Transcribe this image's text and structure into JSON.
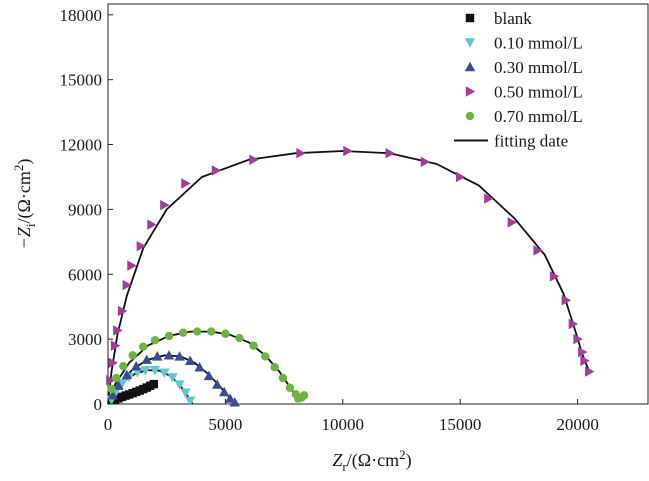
{
  "chart_data": {
    "type": "scatter",
    "title": "",
    "xlabel": {
      "var": "Z",
      "sub": "r",
      "rest": "/(Ω·cm",
      "sup": "2",
      "close": ")"
    },
    "ylabel": {
      "var": "−Z",
      "sub": "i",
      "rest": "/(Ω·cm",
      "sup": "2",
      "close": ")"
    },
    "xlim": [
      0,
      23000
    ],
    "ylim": [
      0,
      18500
    ],
    "xticks": [
      0,
      5000,
      10000,
      15000,
      20000
    ],
    "yticks": [
      0,
      3000,
      6000,
      9000,
      12000,
      15000,
      18000
    ],
    "grid": false,
    "legend_position": "top-right",
    "series": [
      {
        "name": "blank",
        "marker": "square",
        "color": "#111111",
        "points": [
          [
            300,
            200
          ],
          [
            450,
            260
          ],
          [
            600,
            330
          ],
          [
            750,
            390
          ],
          [
            900,
            440
          ],
          [
            1050,
            500
          ],
          [
            1200,
            560
          ],
          [
            1350,
            620
          ],
          [
            1500,
            690
          ],
          [
            1650,
            760
          ],
          [
            1800,
            840
          ],
          [
            1950,
            920
          ]
        ],
        "fit": [
          [
            150,
            100
          ],
          [
            400,
            230
          ],
          [
            700,
            370
          ],
          [
            1000,
            480
          ],
          [
            1300,
            600
          ],
          [
            1600,
            740
          ],
          [
            1900,
            890
          ],
          [
            2050,
            960
          ]
        ]
      },
      {
        "name": "0.10 mmol/L",
        "marker": "triangle-down",
        "color": "#5fc8cf",
        "points": [
          [
            150,
            200
          ],
          [
            350,
            600
          ],
          [
            600,
            950
          ],
          [
            900,
            1250
          ],
          [
            1250,
            1470
          ],
          [
            1600,
            1560
          ],
          [
            2000,
            1570
          ],
          [
            2400,
            1450
          ],
          [
            2750,
            1230
          ],
          [
            3050,
            900
          ],
          [
            3300,
            520
          ],
          [
            3500,
            150
          ]
        ],
        "fit": [
          [
            50,
            0
          ],
          [
            200,
            350
          ],
          [
            450,
            750
          ],
          [
            800,
            1150
          ],
          [
            1200,
            1430
          ],
          [
            1700,
            1570
          ],
          [
            2200,
            1540
          ],
          [
            2650,
            1300
          ],
          [
            3000,
            950
          ],
          [
            3300,
            520
          ],
          [
            3550,
            100
          ],
          [
            3600,
            0
          ]
        ]
      },
      {
        "name": "0.30 mmol/L",
        "marker": "triangle-up",
        "color": "#3a4c8f",
        "points": [
          [
            200,
            400
          ],
          [
            450,
            850
          ],
          [
            800,
            1350
          ],
          [
            1200,
            1750
          ],
          [
            1650,
            2050
          ],
          [
            2100,
            2200
          ],
          [
            2600,
            2250
          ],
          [
            3050,
            2200
          ],
          [
            3500,
            2000
          ],
          [
            3900,
            1700
          ],
          [
            4300,
            1300
          ],
          [
            4650,
            900
          ],
          [
            4950,
            550
          ],
          [
            5200,
            250
          ],
          [
            5400,
            80
          ]
        ],
        "fit": [
          [
            50,
            0
          ],
          [
            250,
            500
          ],
          [
            600,
            1100
          ],
          [
            1100,
            1650
          ],
          [
            1700,
            2050
          ],
          [
            2400,
            2250
          ],
          [
            3100,
            2200
          ],
          [
            3700,
            1900
          ],
          [
            4250,
            1400
          ],
          [
            4700,
            900
          ],
          [
            5100,
            400
          ],
          [
            5450,
            0
          ]
        ]
      },
      {
        "name": "0.50 mmol/L",
        "marker": "triangle-right",
        "color": "#a23d9a",
        "points": [
          [
            100,
            1100
          ],
          [
            200,
            1900
          ],
          [
            300,
            2700
          ],
          [
            400,
            3400
          ],
          [
            600,
            4300
          ],
          [
            800,
            5500
          ],
          [
            1000,
            6400
          ],
          [
            1400,
            7300
          ],
          [
            1850,
            8300
          ],
          [
            2400,
            9200
          ],
          [
            3300,
            10200
          ],
          [
            4600,
            10800
          ],
          [
            6200,
            11300
          ],
          [
            8200,
            11600
          ],
          [
            10200,
            11700
          ],
          [
            12000,
            11600
          ],
          [
            13500,
            11200
          ],
          [
            15000,
            10500
          ],
          [
            16200,
            9500
          ],
          [
            17200,
            8400
          ],
          [
            18300,
            7100
          ],
          [
            19000,
            5900
          ],
          [
            19500,
            4800
          ],
          [
            19800,
            3700
          ],
          [
            20000,
            3000
          ],
          [
            20200,
            2400
          ],
          [
            20300,
            2000
          ],
          [
            20500,
            1500
          ]
        ],
        "fit": [
          [
            0,
            0
          ],
          [
            150,
            1500
          ],
          [
            400,
            3200
          ],
          [
            800,
            5000
          ],
          [
            1500,
            7200
          ],
          [
            2500,
            9000
          ],
          [
            4000,
            10500
          ],
          [
            6000,
            11300
          ],
          [
            8000,
            11600
          ],
          [
            10000,
            11700
          ],
          [
            12000,
            11600
          ],
          [
            14000,
            11100
          ],
          [
            15800,
            10100
          ],
          [
            17300,
            8600
          ],
          [
            18600,
            6900
          ],
          [
            19400,
            5100
          ],
          [
            19900,
            3400
          ],
          [
            20200,
            2300
          ],
          [
            20500,
            1500
          ]
        ]
      },
      {
        "name": "0.70 mmol/L",
        "marker": "circle",
        "color": "#6db33f",
        "points": [
          [
            150,
            700
          ],
          [
            350,
            1200
          ],
          [
            650,
            1750
          ],
          [
            1050,
            2250
          ],
          [
            1500,
            2650
          ],
          [
            2000,
            2950
          ],
          [
            2600,
            3150
          ],
          [
            3200,
            3300
          ],
          [
            3800,
            3350
          ],
          [
            4400,
            3350
          ],
          [
            5000,
            3250
          ],
          [
            5600,
            3050
          ],
          [
            6200,
            2700
          ],
          [
            6700,
            2200
          ],
          [
            7100,
            1700
          ],
          [
            7450,
            1200
          ],
          [
            7750,
            750
          ],
          [
            8000,
            450
          ],
          [
            8100,
            250
          ],
          [
            8250,
            300
          ],
          [
            8350,
            400
          ]
        ],
        "fit": [
          [
            0,
            0
          ],
          [
            300,
            900
          ],
          [
            900,
            1900
          ],
          [
            1700,
            2700
          ],
          [
            2600,
            3150
          ],
          [
            3500,
            3350
          ],
          [
            4400,
            3350
          ],
          [
            5200,
            3200
          ],
          [
            6000,
            2850
          ],
          [
            6700,
            2250
          ],
          [
            7300,
            1500
          ],
          [
            7800,
            700
          ],
          [
            8050,
            300
          ],
          [
            8200,
            280
          ],
          [
            8400,
            380
          ]
        ]
      }
    ],
    "fit_legend": "fitting date"
  }
}
